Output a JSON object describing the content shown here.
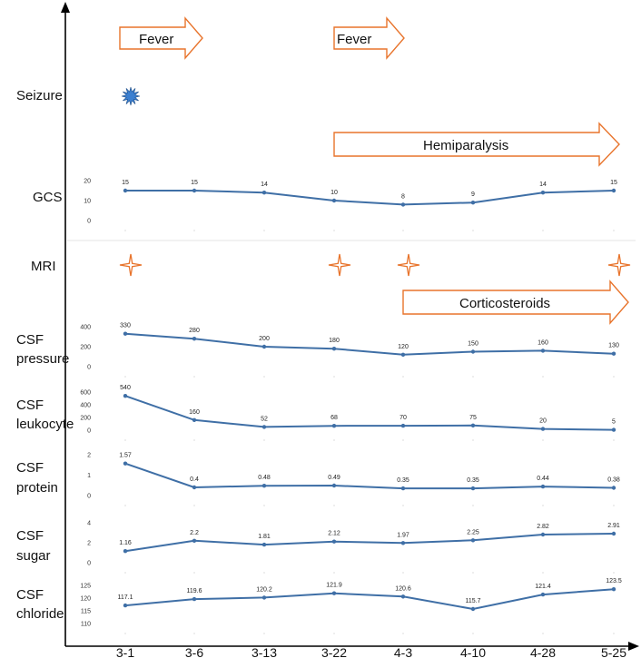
{
  "colors": {
    "line": "#3f6fa6",
    "arrow": "#e8742c",
    "seizure": "#3b7fd0",
    "axis": "#000000"
  },
  "x_labels": [
    "3-1",
    "3-6",
    "3-13",
    "3-22",
    "4-3",
    "4-10",
    "4-28",
    "5-25"
  ],
  "events": {
    "seizure_label": "Seizure",
    "mri_label": "MRI",
    "fever_label": "Fever",
    "hemiparalysis_label": "Hemiparalysis",
    "corticosteroids_label": "Corticosteroids",
    "fever_periods": [
      {
        "from": "3-1",
        "to": "3-6"
      },
      {
        "from": "3-22",
        "to": "4-3"
      }
    ],
    "hemiparalysis_period": {
      "from": "3-22",
      "to": "5-25"
    },
    "corticosteroids_period": {
      "from": "4-3",
      "to": "5-25"
    },
    "seizure_dates": [
      "3-1"
    ],
    "mri_dates": [
      "3-1",
      "3-22",
      "4-3",
      "5-25"
    ]
  },
  "chart_data": [
    {
      "type": "line",
      "label_lines": [
        "GCS"
      ],
      "x": [
        "3-1",
        "3-6",
        "3-13",
        "3-22",
        "4-3",
        "4-10",
        "4-28",
        "5-25"
      ],
      "values": [
        "15",
        "15",
        "14",
        "10",
        "8",
        "9",
        "14",
        "15"
      ],
      "yticks": [
        "20",
        "10",
        "0"
      ],
      "ylim": [
        0,
        20
      ]
    },
    {
      "type": "line",
      "label_lines": [
        "CSF",
        "pressure"
      ],
      "x": [
        "3-1",
        "3-6",
        "3-13",
        "3-22",
        "4-3",
        "4-10",
        "4-28",
        "5-25"
      ],
      "values": [
        "330",
        "280",
        "200",
        "180",
        "120",
        "150",
        "160",
        "130"
      ],
      "yticks": [
        "400",
        "200",
        "0"
      ],
      "ylim": [
        0,
        400
      ]
    },
    {
      "type": "line",
      "label_lines": [
        "CSF",
        "leukocyte"
      ],
      "x": [
        "3-1",
        "3-6",
        "3-13",
        "3-22",
        "4-3",
        "4-10",
        "4-28",
        "5-25"
      ],
      "values": [
        "540",
        "160",
        "52",
        "68",
        "70",
        "75",
        "20",
        "5"
      ],
      "yticks": [
        "600",
        "400",
        "200",
        "0"
      ],
      "ylim": [
        0,
        600
      ]
    },
    {
      "type": "line",
      "label_lines": [
        "CSF",
        "protein"
      ],
      "x": [
        "3-1",
        "3-6",
        "3-13",
        "3-22",
        "4-3",
        "4-10",
        "4-28",
        "5-25"
      ],
      "values": [
        "1.57",
        "0.4",
        "0.48",
        "0.49",
        "0.35",
        "0.35",
        "0.44",
        "0.38"
      ],
      "yticks": [
        "2",
        "1",
        "0"
      ],
      "ylim": [
        0,
        2
      ]
    },
    {
      "type": "line",
      "label_lines": [
        "CSF",
        "sugar"
      ],
      "x": [
        "3-1",
        "3-6",
        "3-13",
        "3-22",
        "4-3",
        "4-10",
        "4-28",
        "5-25"
      ],
      "values": [
        "1.16",
        "2.2",
        "1.81",
        "2.12",
        "1.97",
        "2.25",
        "2.82",
        "2.91"
      ],
      "yticks": [
        "4",
        "2",
        "0"
      ],
      "ylim": [
        0,
        4
      ]
    },
    {
      "type": "line",
      "label_lines": [
        "CSF",
        "chloride"
      ],
      "x": [
        "3-1",
        "3-6",
        "3-13",
        "3-22",
        "4-3",
        "4-10",
        "4-28",
        "5-25"
      ],
      "values": [
        "117.1",
        "119.6",
        "120.2",
        "121.9",
        "120.6",
        "115.7",
        "121.4",
        "123.5"
      ],
      "yticks": [
        "125",
        "120",
        "115",
        "110"
      ],
      "ylim": [
        110,
        125
      ]
    }
  ]
}
